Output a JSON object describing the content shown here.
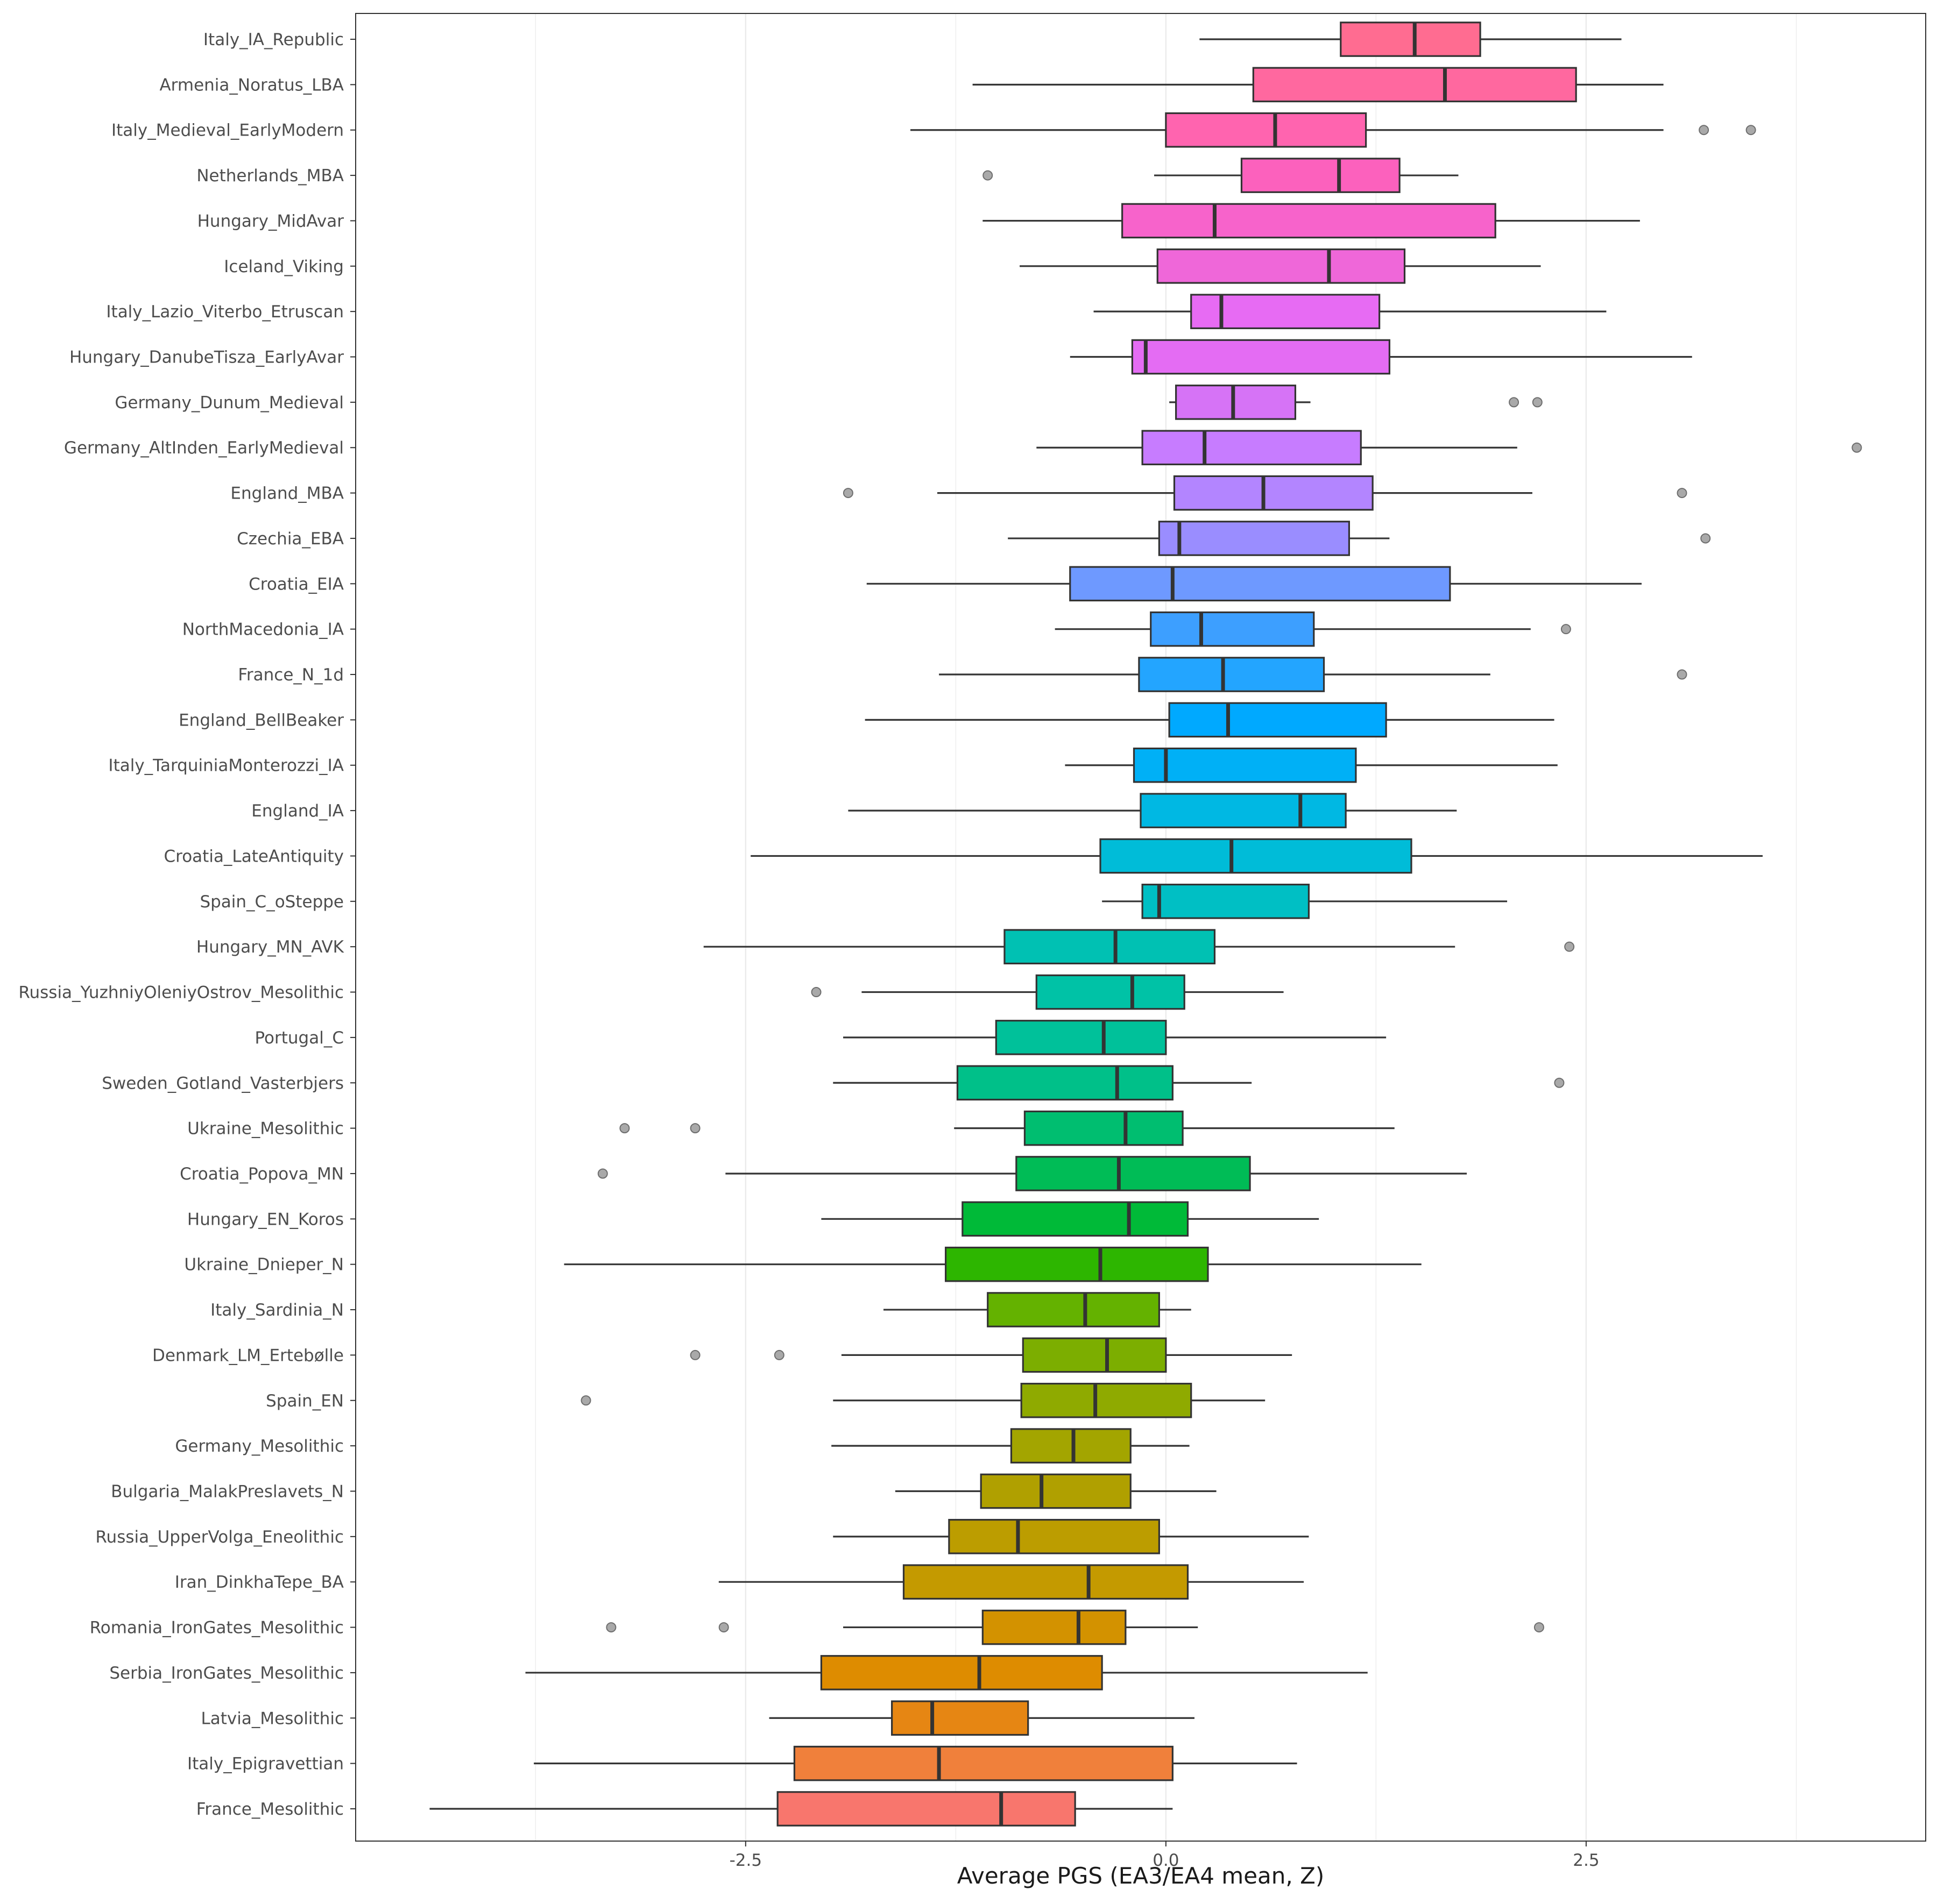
{
  "chart_data": {
    "type": "boxplot",
    "orientation": "horizontal",
    "title": "",
    "xlabel": "Average PGS (EA3/EA4 mean, Z)",
    "ylabel": "",
    "xlim": [
      -4.82,
      4.52
    ],
    "xticks": [
      -2.5,
      0.0,
      2.5
    ],
    "xtick_labels": [
      "-2.5",
      "0.0",
      "2.5"
    ],
    "grid": true,
    "legend": "none",
    "series": [
      {
        "name": "Italy_IA_Republic",
        "color": "#FF6C91",
        "whisker_low": 0.2,
        "q1": 1.04,
        "median": 1.48,
        "q3": 1.87,
        "whisker_high": 2.71,
        "outliers": []
      },
      {
        "name": "Armenia_Noratus_LBA",
        "color": "#FF689F",
        "whisker_low": -1.15,
        "q1": 0.52,
        "median": 1.66,
        "q3": 2.44,
        "whisker_high": 2.96,
        "outliers": []
      },
      {
        "name": "Italy_Medieval_EarlyModern",
        "color": "#FF64AF",
        "whisker_low": -1.52,
        "q1": 0.0,
        "median": 0.65,
        "q3": 1.19,
        "whisker_high": 2.96,
        "outliers": [
          3.2,
          3.48
        ]
      },
      {
        "name": "Netherlands_MBA",
        "color": "#FC61BD",
        "whisker_low": -0.07,
        "q1": 0.45,
        "median": 1.03,
        "q3": 1.39,
        "whisker_high": 1.74,
        "outliers": [
          -1.06
        ]
      },
      {
        "name": "Hungary_MidAvar",
        "color": "#F763CB",
        "whisker_low": -1.09,
        "q1": -0.26,
        "median": 0.29,
        "q3": 1.96,
        "whisker_high": 2.82,
        "outliers": []
      },
      {
        "name": "Iceland_Viking",
        "color": "#EF67D9",
        "whisker_low": -0.87,
        "q1": -0.05,
        "median": 0.97,
        "q3": 1.42,
        "whisker_high": 2.23,
        "outliers": []
      },
      {
        "name": "Italy_Lazio_Viterbo_Etruscan",
        "color": "#E76BF3",
        "whisker_low": -0.43,
        "q1": 0.15,
        "median": 0.33,
        "q3": 1.27,
        "whisker_high": 2.62,
        "outliers": []
      },
      {
        "name": "Hungary_DanubeTisza_EarlyAvar",
        "color": "#E46CF3",
        "whisker_low": -0.57,
        "q1": -0.2,
        "median": -0.12,
        "q3": 1.33,
        "whisker_high": 3.13,
        "outliers": []
      },
      {
        "name": "Germany_Dunum_Medieval",
        "color": "#D673F6",
        "whisker_low": 0.02,
        "q1": 0.06,
        "median": 0.4,
        "q3": 0.77,
        "whisker_high": 0.86,
        "outliers": [
          2.07,
          2.21
        ]
      },
      {
        "name": "Germany_AltInden_EarlyMedieval",
        "color": "#C77CFF",
        "whisker_low": -0.77,
        "q1": -0.14,
        "median": 0.23,
        "q3": 1.16,
        "whisker_high": 2.09,
        "outliers": [
          4.11
        ]
      },
      {
        "name": "England_MBA",
        "color": "#B385FF",
        "whisker_low": -1.36,
        "q1": 0.05,
        "median": 0.58,
        "q3": 1.23,
        "whisker_high": 2.18,
        "outliers": [
          -1.89,
          3.07
        ]
      },
      {
        "name": "Czechia_EBA",
        "color": "#9A8DFF",
        "whisker_low": -0.94,
        "q1": -0.04,
        "median": 0.08,
        "q3": 1.09,
        "whisker_high": 1.33,
        "outliers": [
          3.21
        ]
      },
      {
        "name": "Croatia_EIA",
        "color": "#6E99FF",
        "whisker_low": -1.78,
        "q1": -0.57,
        "median": 0.04,
        "q3": 1.69,
        "whisker_high": 2.83,
        "outliers": []
      },
      {
        "name": "NorthMacedonia_IA",
        "color": "#3D9FFF",
        "whisker_low": -0.66,
        "q1": -0.09,
        "median": 0.21,
        "q3": 0.88,
        "whisker_high": 2.17,
        "outliers": [
          2.38
        ]
      },
      {
        "name": "France_N_1d",
        "color": "#23A5FF",
        "whisker_low": -1.35,
        "q1": -0.16,
        "median": 0.34,
        "q3": 0.94,
        "whisker_high": 1.93,
        "outliers": [
          3.07
        ]
      },
      {
        "name": "England_BellBeaker",
        "color": "#00A9FF",
        "whisker_low": -1.79,
        "q1": 0.02,
        "median": 0.37,
        "q3": 1.31,
        "whisker_high": 2.31,
        "outliers": []
      },
      {
        "name": "Italy_TarquiniaMonterozzi_IA",
        "color": "#00B0F6",
        "whisker_low": -0.6,
        "q1": -0.19,
        "median": 0.0,
        "q3": 1.13,
        "whisker_high": 2.33,
        "outliers": []
      },
      {
        "name": "England_IA",
        "color": "#00B8E3",
        "whisker_low": -1.89,
        "q1": -0.15,
        "median": 0.8,
        "q3": 1.07,
        "whisker_high": 1.73,
        "outliers": []
      },
      {
        "name": "Croatia_LateAntiquity",
        "color": "#00BCD8",
        "whisker_low": -2.47,
        "q1": -0.39,
        "median": 0.39,
        "q3": 1.46,
        "whisker_high": 3.55,
        "outliers": []
      },
      {
        "name": "Spain_C_oSteppe",
        "color": "#00BFC4",
        "whisker_low": -0.38,
        "q1": -0.14,
        "median": -0.04,
        "q3": 0.85,
        "whisker_high": 2.03,
        "outliers": []
      },
      {
        "name": "Hungary_MN_AVK",
        "color": "#00C1B3",
        "whisker_low": -2.75,
        "q1": -0.96,
        "median": -0.3,
        "q3": 0.29,
        "whisker_high": 1.72,
        "outliers": [
          2.4
        ]
      },
      {
        "name": "Russia_YuzhniyOleniyOstrov_Mesolithic",
        "color": "#00C2A6",
        "whisker_low": -1.81,
        "q1": -0.77,
        "median": -0.2,
        "q3": 0.11,
        "whisker_high": 0.7,
        "outliers": [
          -2.08
        ]
      },
      {
        "name": "Portugal_C",
        "color": "#00C19A",
        "whisker_low": -1.92,
        "q1": -1.01,
        "median": -0.37,
        "q3": 0.0,
        "whisker_high": 1.31,
        "outliers": []
      },
      {
        "name": "Sweden_Gotland_Vasterbjers",
        "color": "#00C089",
        "whisker_low": -1.98,
        "q1": -1.24,
        "median": -0.29,
        "q3": 0.04,
        "whisker_high": 0.51,
        "outliers": [
          2.34
        ]
      },
      {
        "name": "Ukraine_Mesolithic",
        "color": "#00BE70",
        "whisker_low": -1.26,
        "q1": -0.84,
        "median": -0.24,
        "q3": 0.1,
        "whisker_high": 1.36,
        "outliers": [
          -3.22,
          -2.8
        ]
      },
      {
        "name": "Croatia_Popova_MN",
        "color": "#00BC56",
        "whisker_low": -2.62,
        "q1": -0.89,
        "median": -0.28,
        "q3": 0.5,
        "whisker_high": 1.79,
        "outliers": [
          -3.35
        ]
      },
      {
        "name": "Hungary_EN_Koros",
        "color": "#00BA38",
        "whisker_low": -2.05,
        "q1": -1.21,
        "median": -0.22,
        "q3": 0.13,
        "whisker_high": 0.91,
        "outliers": []
      },
      {
        "name": "Ukraine_Dnieper_N",
        "color": "#2DB600",
        "whisker_low": -3.58,
        "q1": -1.31,
        "median": -0.39,
        "q3": 0.25,
        "whisker_high": 1.52,
        "outliers": []
      },
      {
        "name": "Italy_Sardinia_N",
        "color": "#64B200",
        "whisker_low": -1.68,
        "q1": -1.06,
        "median": -0.48,
        "q3": -0.04,
        "whisker_high": 0.15,
        "outliers": []
      },
      {
        "name": "Denmark_LM_Ertebølle",
        "color": "#7CAE00",
        "whisker_low": -1.93,
        "q1": -0.85,
        "median": -0.35,
        "q3": 0.0,
        "whisker_high": 0.75,
        "outliers": [
          -2.8,
          -2.3
        ]
      },
      {
        "name": "Spain_EN",
        "color": "#8FAA00",
        "whisker_low": -1.98,
        "q1": -0.86,
        "median": -0.42,
        "q3": 0.15,
        "whisker_high": 0.59,
        "outliers": [
          -3.45
        ]
      },
      {
        "name": "Germany_Mesolithic",
        "color": "#A3A500",
        "whisker_low": -1.99,
        "q1": -0.92,
        "median": -0.55,
        "q3": -0.21,
        "whisker_high": 0.14,
        "outliers": []
      },
      {
        "name": "Bulgaria_MalakPreslavets_N",
        "color": "#B0A000",
        "whisker_low": -1.61,
        "q1": -1.1,
        "median": -0.74,
        "q3": -0.21,
        "whisker_high": 0.3,
        "outliers": []
      },
      {
        "name": "Russia_UpperVolga_Eneolithic",
        "color": "#BC9D00",
        "whisker_low": -1.98,
        "q1": -1.29,
        "median": -0.88,
        "q3": -0.04,
        "whisker_high": 0.85,
        "outliers": []
      },
      {
        "name": "Iran_DinkhaTepe_BA",
        "color": "#C49A00",
        "whisker_low": -2.66,
        "q1": -1.56,
        "median": -0.46,
        "q3": 0.13,
        "whisker_high": 0.82,
        "outliers": []
      },
      {
        "name": "Romania_IronGates_Mesolithic",
        "color": "#D39200",
        "whisker_low": -1.92,
        "q1": -1.09,
        "median": -0.52,
        "q3": -0.24,
        "whisker_high": 0.19,
        "outliers": [
          -3.3,
          -2.63,
          2.22
        ]
      },
      {
        "name": "Serbia_IronGates_Mesolithic",
        "color": "#DE8C00",
        "whisker_low": -3.81,
        "q1": -2.05,
        "median": -1.11,
        "q3": -0.38,
        "whisker_high": 1.2,
        "outliers": []
      },
      {
        "name": "Latvia_Mesolithic",
        "color": "#E68613",
        "whisker_low": -2.36,
        "q1": -1.63,
        "median": -1.39,
        "q3": -0.82,
        "whisker_high": 0.17,
        "outliers": []
      },
      {
        "name": "Italy_Epigravettian",
        "color": "#F0803B",
        "whisker_low": -3.76,
        "q1": -2.21,
        "median": -1.35,
        "q3": 0.04,
        "whisker_high": 0.78,
        "outliers": []
      },
      {
        "name": "France_Mesolithic",
        "color": "#F8766D",
        "whisker_low": -4.38,
        "q1": -2.31,
        "median": -0.98,
        "q3": -0.54,
        "whisker_high": 0.04,
        "outliers": []
      }
    ]
  }
}
